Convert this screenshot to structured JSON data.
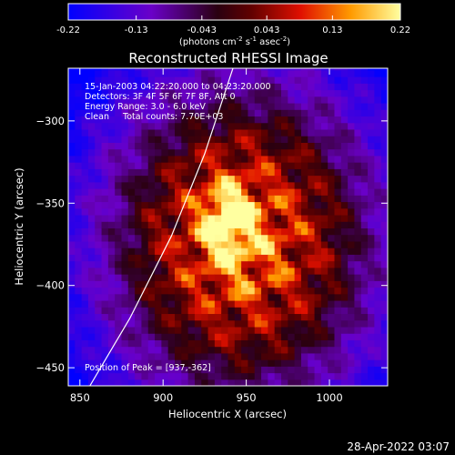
{
  "chart_data": {
    "type": "heatmap",
    "title": "Reconstructed RHESSI Image",
    "xlabel": "Heliocentric X (arcsec)",
    "ylabel": "Heliocentric Y (arcsec)",
    "xlim": [
      843,
      1035
    ],
    "ylim": [
      -461,
      -268
    ],
    "x_ticks": [
      850,
      900,
      950,
      1000
    ],
    "y_ticks": [
      -300,
      -350,
      -400,
      -450
    ],
    "colorbar": {
      "range": [
        -0.22,
        0.22
      ],
      "ticks": [
        "-0.22",
        "-0.13",
        "-0.043",
        "0.043",
        "0.13",
        "0.22"
      ],
      "label": "(photons cm",
      "label_parts": [
        "(photons cm",
        "-2",
        " s",
        "-1",
        " asec",
        "-2",
        ")"
      ]
    },
    "annotations": [
      "15-Jan-2003 04:22:20.000 to 04:23:20.000",
      "Detectors: 3F 4F 5F 6F 7F 8F, Att 0",
      "Energy Range: 3.0 - 6.0 keV",
      "Clean     Total counts: 7.70E+03"
    ],
    "peak_label": "Position of Peak = [937,-362]",
    "peak": [
      937,
      -362
    ],
    "limb_curve": [
      [
        856,
        -461
      ],
      [
        880,
        -420
      ],
      [
        905,
        -370
      ],
      [
        925,
        -320
      ],
      [
        942,
        -268
      ]
    ]
  },
  "footer": {
    "date": "28-Apr-2022 03:07"
  }
}
